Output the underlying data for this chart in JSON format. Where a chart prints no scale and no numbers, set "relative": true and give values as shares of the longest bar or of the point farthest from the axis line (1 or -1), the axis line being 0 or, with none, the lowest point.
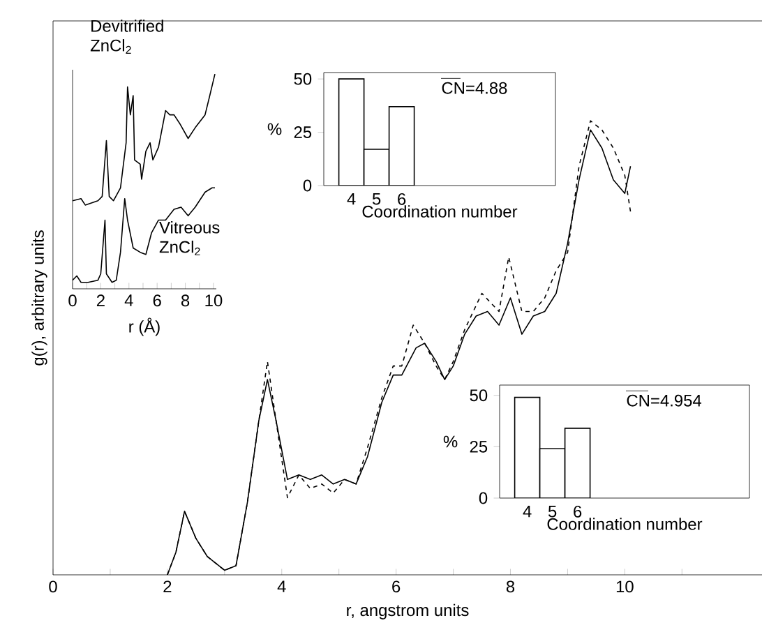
{
  "chart_data": [
    {
      "type": "line",
      "xlabel": "r, angstrom units",
      "ylabel": "g(r), arbitrary units",
      "relative": true,
      "xlim": [
        0,
        12.4
      ],
      "xticks": [
        0,
        {
          "value": 1,
          "label": null
        },
        2,
        {
          "value": 3,
          "label": null
        },
        4,
        {
          "value": 5,
          "label": null
        },
        6,
        {
          "value": 7,
          "label": null
        },
        8,
        {
          "value": 9,
          "label": null
        },
        10,
        {
          "value": 11,
          "label": null
        }
      ],
      "series": [
        {
          "color": "#000000",
          "line_style": "solid",
          "x": [
            2.0,
            2.15,
            2.3,
            2.5,
            2.7,
            3.0,
            3.2,
            3.4,
            3.6,
            3.75,
            3.9,
            4.1,
            4.3,
            4.5,
            4.7,
            4.9,
            5.1,
            5.3,
            5.5,
            5.75,
            5.95,
            6.1,
            6.35,
            6.5,
            6.7,
            6.85,
            7.0,
            7.2,
            7.4,
            7.6,
            7.8,
            8.0,
            8.2,
            8.4,
            8.6,
            8.8,
            9.0,
            9.2,
            9.4,
            9.6,
            9.8,
            10.0,
            10.1
          ],
          "values": [
            0,
            0.05,
            0.14,
            0.08,
            0.04,
            0.01,
            0.02,
            0.16,
            0.34,
            0.43,
            0.34,
            0.21,
            0.22,
            0.21,
            0.22,
            0.2,
            0.21,
            0.2,
            0.26,
            0.38,
            0.44,
            0.44,
            0.5,
            0.51,
            0.47,
            0.43,
            0.46,
            0.53,
            0.57,
            0.58,
            0.55,
            0.61,
            0.53,
            0.57,
            0.58,
            0.62,
            0.73,
            0.87,
            0.98,
            0.94,
            0.87,
            0.84,
            0.9
          ]
        },
        {
          "color": "#000000",
          "line_style": "dashed",
          "x": [
            2.0,
            2.15,
            2.3,
            2.5,
            2.7,
            3.0,
            3.2,
            3.4,
            3.6,
            3.75,
            3.9,
            4.1,
            4.3,
            4.5,
            4.7,
            4.9,
            5.1,
            5.3,
            5.5,
            5.75,
            5.95,
            6.1,
            6.3,
            6.5,
            6.7,
            6.85,
            7.0,
            7.2,
            7.5,
            7.8,
            7.97,
            8.2,
            8.4,
            8.6,
            8.8,
            9.0,
            9.2,
            9.4,
            9.6,
            9.8,
            10.0,
            10.1
          ],
          "values": [
            0,
            0.05,
            0.14,
            0.08,
            0.04,
            0.01,
            0.02,
            0.16,
            0.34,
            0.47,
            0.34,
            0.17,
            0.22,
            0.19,
            0.2,
            0.18,
            0.21,
            0.2,
            0.28,
            0.39,
            0.46,
            0.46,
            0.55,
            0.51,
            0.46,
            0.43,
            0.47,
            0.54,
            0.62,
            0.58,
            0.7,
            0.58,
            0.58,
            0.61,
            0.67,
            0.71,
            0.9,
            1.0,
            0.98,
            0.94,
            0.88,
            0.8
          ]
        }
      ]
    },
    {
      "type": "line",
      "xlabel": "r (Å)",
      "relative": true,
      "xlim": [
        0,
        10.2
      ],
      "xticks": [
        0,
        {
          "value": 1,
          "label": null
        },
        2,
        {
          "value": 3,
          "label": null
        },
        4,
        {
          "value": 5,
          "label": null
        },
        6,
        {
          "value": 7,
          "label": null
        },
        8,
        {
          "value": 9,
          "label": null
        },
        10
      ],
      "series": [
        {
          "name": "Devitrified ZnCl$_{2}$",
          "color": "#000000",
          "line_style": "solid",
          "x": [
            0.0,
            0.6,
            0.9,
            1.8,
            2.1,
            2.4,
            2.6,
            2.9,
            3.4,
            3.8,
            3.9,
            4.1,
            4.3,
            4.4,
            4.8,
            4.9,
            5.2,
            5.5,
            5.7,
            6.1,
            6.6,
            6.9,
            7.2,
            7.6,
            8.2,
            8.7,
            9.4,
            9.7,
            10.1
          ],
          "values": [
            0.41,
            0.42,
            0.39,
            0.41,
            0.43,
            0.69,
            0.43,
            0.41,
            0.47,
            0.68,
            0.94,
            0.81,
            0.9,
            0.6,
            0.58,
            0.51,
            0.64,
            0.68,
            0.6,
            0.66,
            0.83,
            0.81,
            0.81,
            0.77,
            0.7,
            0.75,
            0.81,
            0.89,
            1.0
          ]
        },
        {
          "name": "Vitreous ZnCl$_{2}$",
          "color": "#000000",
          "line_style": "solid",
          "x": [
            0.0,
            0.3,
            0.6,
            1.1,
            1.8,
            2.0,
            2.3,
            2.4,
            2.8,
            3.1,
            3.4,
            3.7,
            3.9,
            4.3,
            4.8,
            5.2,
            5.6,
            6.1,
            6.6,
            7.2,
            7.7,
            8.2,
            8.7,
            9.4,
            9.9,
            10.1
          ],
          "values": [
            0.04,
            0.06,
            0.03,
            0.03,
            0.04,
            0.07,
            0.32,
            0.07,
            0.03,
            0.04,
            0.17,
            0.42,
            0.32,
            0.19,
            0.17,
            0.16,
            0.26,
            0.32,
            0.32,
            0.37,
            0.38,
            0.34,
            0.38,
            0.45,
            0.47,
            0.47
          ]
        }
      ]
    },
    {
      "type": "bar",
      "categories": [
        "4",
        "5",
        "6"
      ],
      "values": [
        50,
        17,
        37
      ],
      "color": "#ffffff",
      "xlabel": "Coordination number",
      "ylabel": "%",
      "ylim": [
        0,
        53
      ],
      "yticks": [
        0,
        25,
        50
      ],
      "annotations": [
        "CN=4.88"
      ]
    },
    {
      "type": "bar",
      "categories": [
        "4",
        "5",
        "6"
      ],
      "values": [
        49,
        24,
        34
      ],
      "color": "#ffffff",
      "xlabel": "Coordination number",
      "ylabel": "%",
      "ylim": [
        0,
        55
      ],
      "yticks": [
        0,
        25,
        50
      ],
      "annotations": [
        "CN=4.954"
      ]
    }
  ]
}
